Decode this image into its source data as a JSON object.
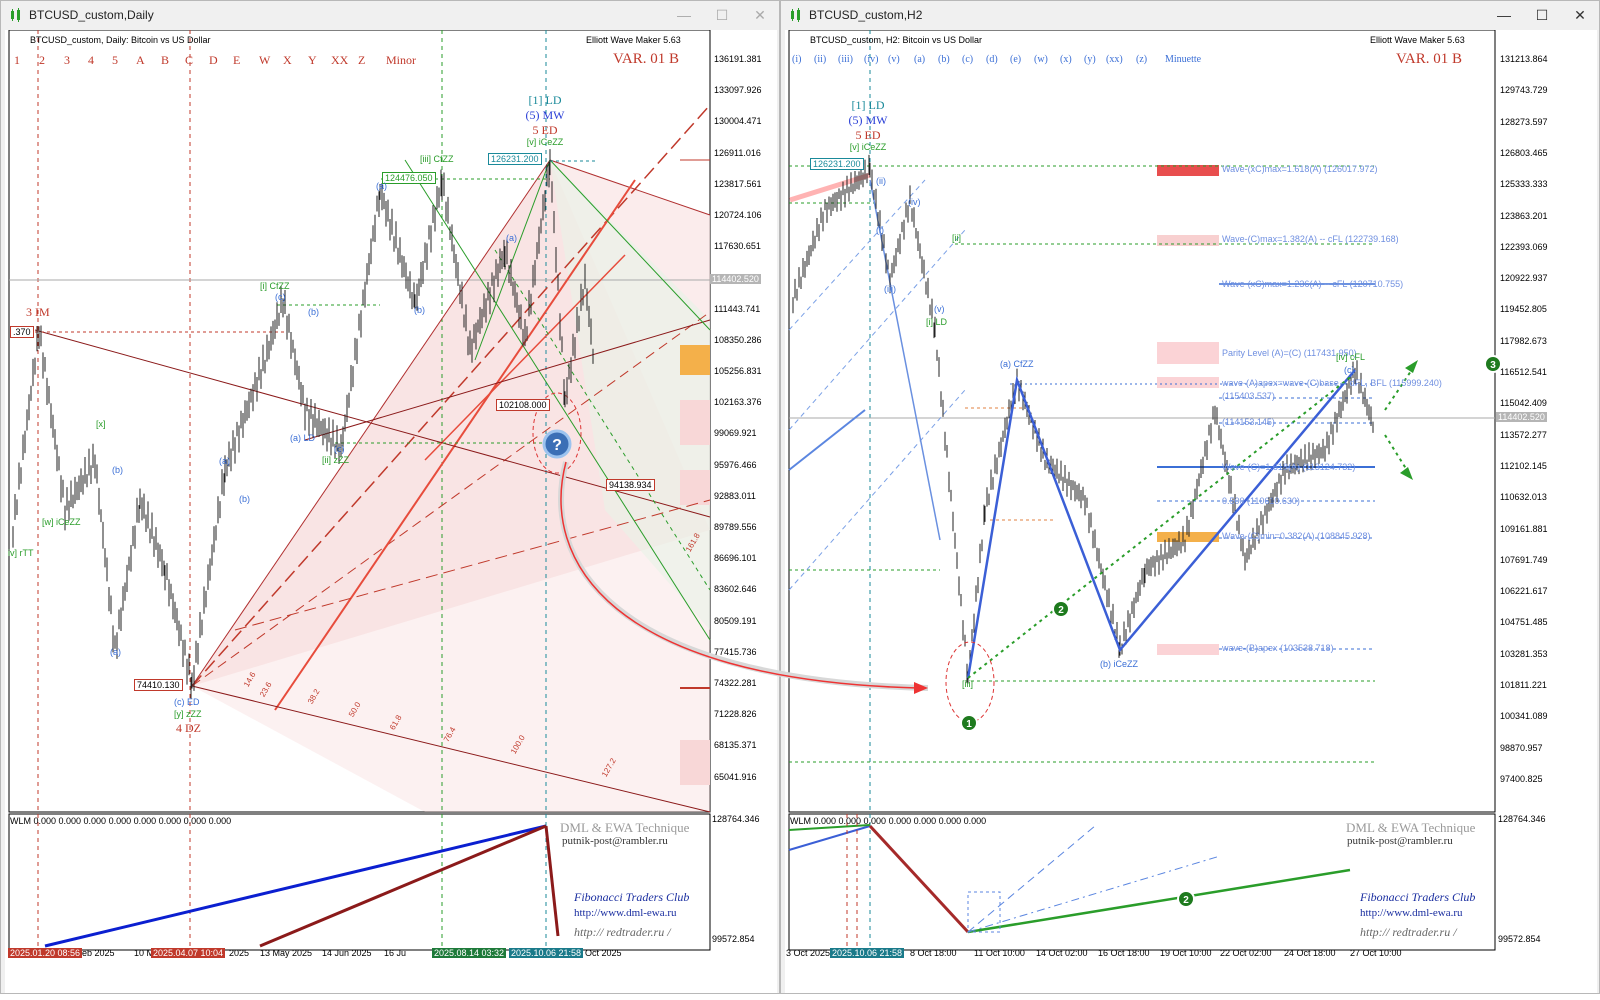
{
  "left": {
    "window_title": "BTCUSD_custom,Daily",
    "header": "BTCUSD_custom, Daily:  Bitcoin vs US Dollar",
    "tool": "Elliott Wave Maker 5.63",
    "variant": "VAR. 01 B",
    "degree_buttons": [
      "1",
      "2",
      "3",
      "4",
      "5",
      "A",
      "B",
      "C",
      "D",
      "E",
      "W",
      "X",
      "Y",
      "XX",
      "Z"
    ],
    "degree_label": "Minor",
    "price_ticks": [
      "136191.381",
      "133097.926",
      "130004.471",
      "126911.016",
      "123817.561",
      "120724.106",
      "117630.651",
      "114402.520",
      "111443.741",
      "108350.286",
      "105256.831",
      "102163.376",
      "99069.921",
      "95976.466",
      "92883.011",
      "89789.556",
      "86696.101",
      "83602.646",
      "80509.191",
      "77415.736",
      "74322.281",
      "71228.826",
      "68135.371",
      "65041.916"
    ],
    "current_price": "114402.520",
    "price_boxes": {
      "high": "126231.200",
      "iii_high": "124476.050",
      "low": "74410.130",
      "mid": "102108.000",
      "target": "94138.934",
      "side": ".370"
    },
    "wave_labels": {
      "ld1": "[1] LD",
      "mw5": "(5) MW",
      "ed5": "5 ED",
      "v_iceZZ": "[v] iCeZZ",
      "iii_cfZZ": "[iii] CfZZ",
      "i_cfZZ": "[i] CfZZ",
      "ii_zz": "[ii] zZZ",
      "a_ld": "(a) LD",
      "w_iceZZ": "[w] iCeZZ",
      "iv_rtt": "iv] rTT",
      "c_ed": "(c) ED",
      "y_zz": "[y] zZZ",
      "dz4": "4 DZ",
      "im3": "3 IM",
      "x": "[x]",
      "a": "(a)",
      "b": "(b)",
      "c": "(c)"
    },
    "indicator_label": "WLM 0.000 0.000 0.000 0.000 0.000 0.000 0.000 0.000",
    "indicator_ticks": [
      "128764.346",
      "99572.854"
    ],
    "watermark": [
      "DML & EWA Technique",
      "putnik-post@rambler.ru",
      "Fibonacci   Traders   Club",
      "http://www.dml-ewa.ru",
      "http://  redtrader.ru  /"
    ],
    "time_labels": [
      "2025.01.20 08:56",
      "eb 2025",
      "10 M",
      "2025.04.07 10:04",
      "2025",
      "13 May 2025",
      "14 Jun 2025",
      "16 Ju",
      "2025.08.14 03:32",
      "2025.10.06 21:58",
      "Oct 2025"
    ],
    "fib_levels": [
      "14.6",
      "23.6",
      "38.2",
      "50.0",
      "61.8",
      "76.4",
      "100.0",
      "127.2",
      "161.8"
    ]
  },
  "right": {
    "window_title": "BTCUSD_custom,H2",
    "header": "BTCUSD_custom, H2:  Bitcoin vs US Dollar",
    "tool": "Elliott Wave Maker 5.63",
    "variant": "VAR. 01 B",
    "degree_buttons": [
      "(i)",
      "(ii)",
      "(iii)",
      "(iv)",
      "(v)",
      "(a)",
      "(b)",
      "(c)",
      "(d)",
      "(e)",
      "(w)",
      "(x)",
      "(y)",
      "(xx)",
      "(z)"
    ],
    "degree_label": "Minuette",
    "price_ticks": [
      "131213.864",
      "129743.729",
      "128273.597",
      "126803.465",
      "125333.333",
      "123863.201",
      "122393.069",
      "120922.937",
      "119452.805",
      "117982.673",
      "116512.541",
      "115042.409",
      "113572.277",
      "112102.145",
      "110632.013",
      "109161.881",
      "107691.749",
      "106221.617",
      "104751.485",
      "103281.353",
      "101811.221",
      "100341.089",
      "98870.957",
      "97400.825"
    ],
    "current_price": "114402.520",
    "level_labels": [
      "Wave-(xC)max=1.618(A) (126017.972)",
      "Wave-(C)max=1.382(A) -- cFL (122739.168)",
      "Wave-(xC)max=1.236(A) -- cFL (120710.755)",
      "Parity Level (A)=(C) (117431.950)",
      "wave-(A)apex=wave-(C)base -- dFL, BFL (115999.240)",
      "(115403.537)",
      "(114153.145)",
      "Wave-(C)=1.618(A) (113124.732)",
      "0.500 (110610.630)",
      "Wave-(C)min=0.382(A) (108845.928)",
      "wave-(B)apex (103538.718)"
    ],
    "wave_labels": {
      "ld1": "[1] LD",
      "mw5": "(5) MW",
      "ed5": "5 ED",
      "v_iceZZ": "[v] iCeZZ",
      "high": "126231.200",
      "ii": "[ii]",
      "iii": "[iii]",
      "iv": "(iv)",
      "v": "(v)",
      "i_ld": "[i] LD",
      "a_cfzz": "(a) CfZZ",
      "b_icezz": "(b) iCeZZ",
      "iv_cfl": "[iv] cFL",
      "c": "(c)",
      "ii_small": "(ii)",
      "iii_small": "(iii)",
      "i_small": "(i)"
    },
    "markers": [
      "1",
      "2",
      "3"
    ],
    "indicator_label": "WLM 0.000 0.000 0.000 0.000 0.000 0.000 0.000",
    "indicator_ticks": [
      "128764.346",
      "99572.854"
    ],
    "watermark": [
      "DML & EWA Technique",
      "putnik-post@rambler.ru",
      "Fibonacci   Traders   Club",
      "http://www.dml-ewa.ru",
      "http://  redtrader.ru  /"
    ],
    "time_labels": [
      "3 Oct 2025",
      "2025.10.06 21:58",
      "8 Oct 18:00",
      "11 Oct 10:00",
      "14 Oct 02:00",
      "16 Oct 18:00",
      "19 Oct 10:00",
      "22 Oct 02:00",
      "24 Oct 18:00",
      "27 Oct 10:00"
    ]
  },
  "window_buttons": {
    "minimize": "—",
    "maximize": "☐",
    "close": "✕"
  }
}
